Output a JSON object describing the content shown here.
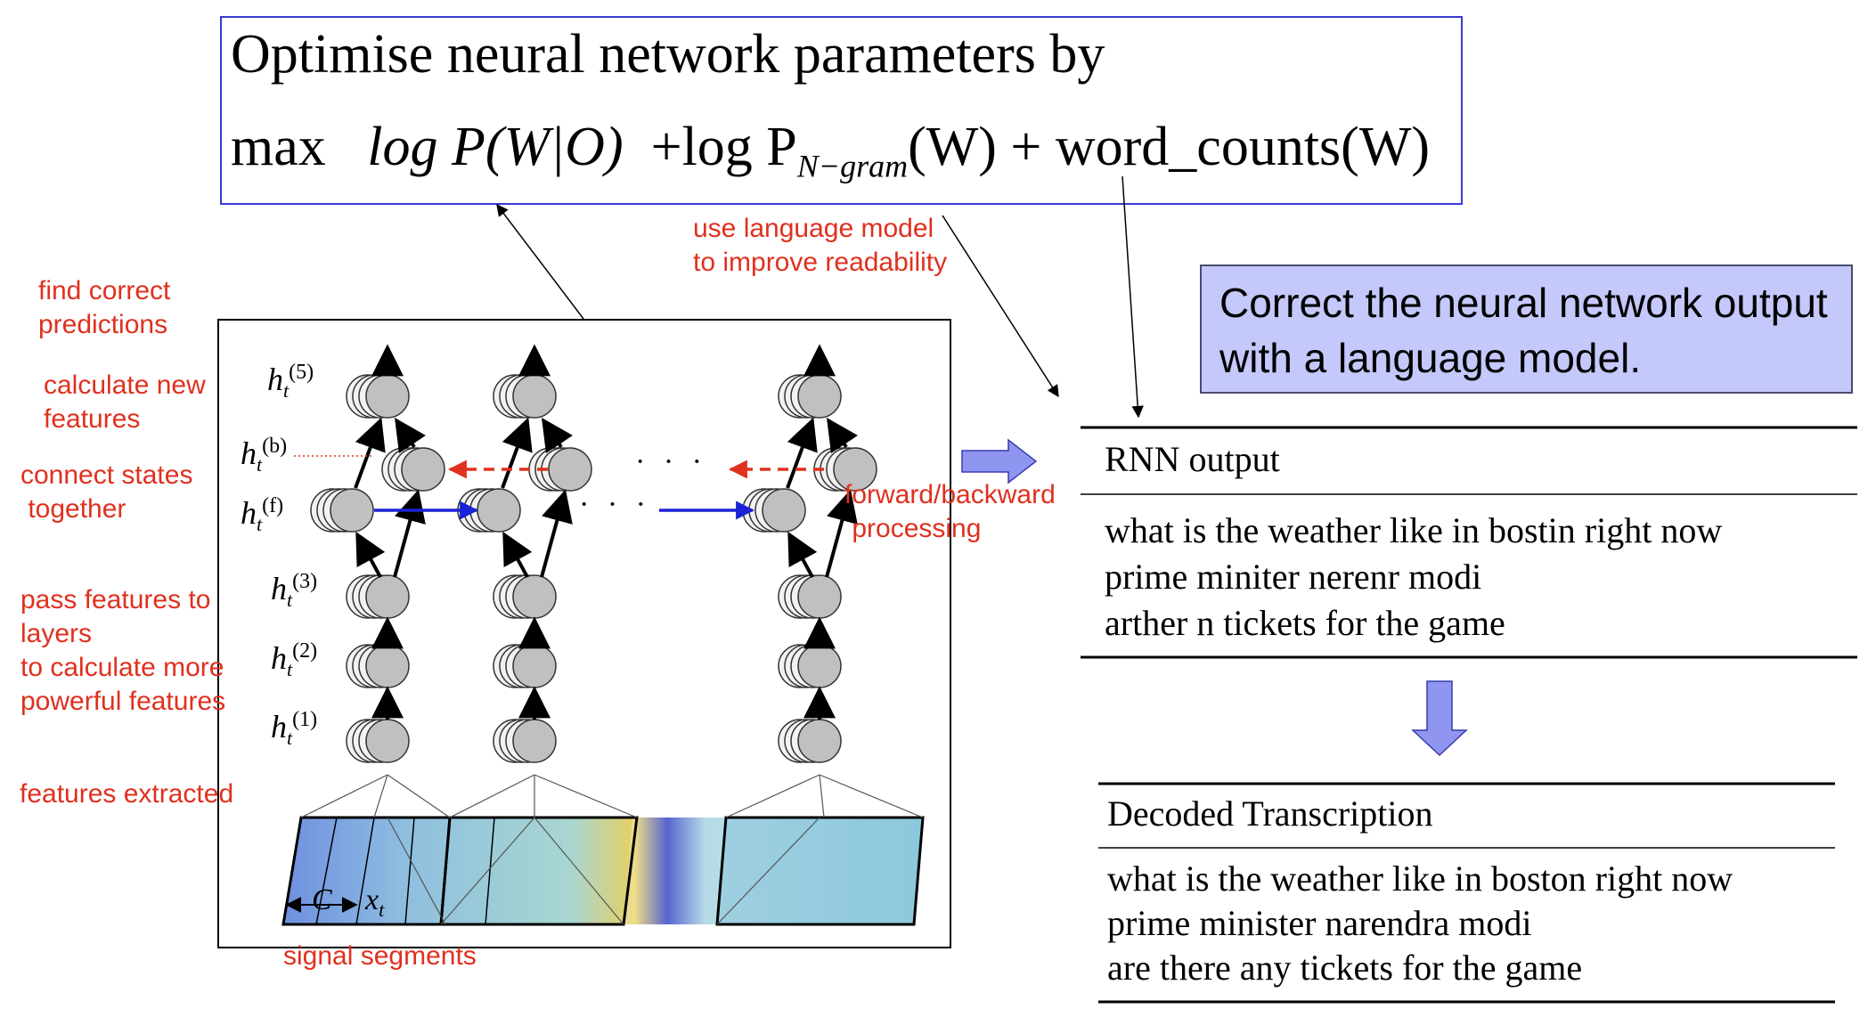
{
  "formula": {
    "line1": "Optimise neural network parameters by",
    "max": "max",
    "term1": "log P(W|O)",
    "term2_prefix": "+log P",
    "term2_sub": "N−gram",
    "term2_suffix": "(W)",
    "term3": "+ word_counts(W)"
  },
  "callout": {
    "text": "Correct the neural network output with a language model."
  },
  "annotations": {
    "find_correct": [
      "find correct",
      "predictions"
    ],
    "calculate_new": [
      "calculate new",
      "features"
    ],
    "connect_states": [
      "connect states",
      " together"
    ],
    "pass_features": [
      "pass features to",
      "layers",
      "to calculate more",
      "powerful features"
    ],
    "features_extracted": "features extracted",
    "signal_segments": "signal segments",
    "forward_backward": [
      "forward/backward",
      " processing"
    ],
    "use_lm": [
      "use language model",
      "to improve readability"
    ]
  },
  "layers": {
    "h5": "5",
    "hb": "b",
    "hf": "f",
    "h3": "3",
    "h2": "2",
    "h1": "1",
    "base": "h",
    "sub": "t"
  },
  "dots": "· · ·",
  "input_labels": {
    "context": "C",
    "x": "x",
    "x_sub": "t"
  },
  "rnn_table": {
    "header": "RNN output",
    "rows": [
      "what is the weather like in bostin right now",
      "prime miniter nerenr modi",
      "arther n tickets for the game"
    ]
  },
  "decoded_table": {
    "header": "Decoded Transcription",
    "rows": [
      "what is the weather like in boston right now",
      "prime minister narendra modi",
      "are there any tickets for the game"
    ]
  },
  "colors": {
    "annotation_red": "#e0301e",
    "formula_border": "#3a3ad6",
    "callout_fill": "#c5c8fa",
    "forward_arrow": "#1a23d6",
    "backward_arrow": "#e0301e",
    "block_arrow": "#8f96ef",
    "node_fill": "#c0c0c0"
  }
}
